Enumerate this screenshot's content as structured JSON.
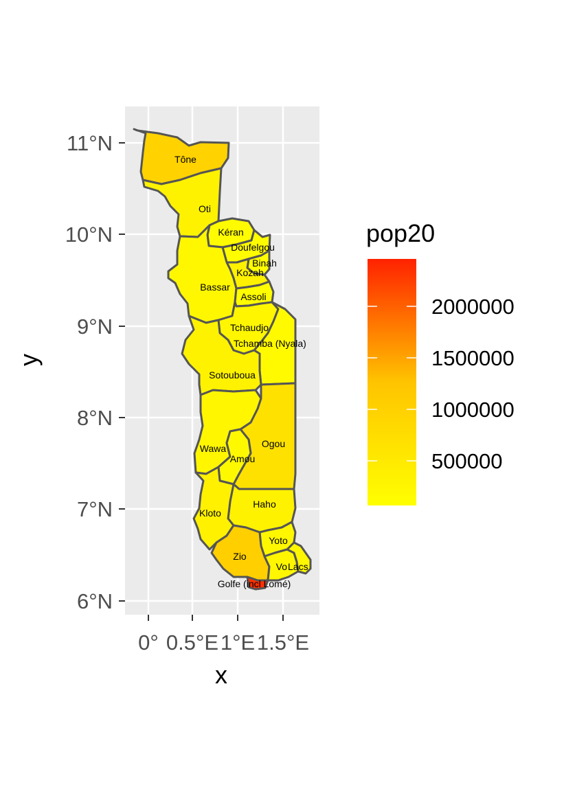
{
  "chart_data": {
    "type": "choropleth",
    "xlabel": "x",
    "ylabel": "y",
    "x_ticks": [
      "0°",
      "0.5°E",
      "1°E",
      "1.5°E"
    ],
    "y_ticks": [
      "6°N",
      "7°N",
      "8°N",
      "9°N",
      "10°N",
      "11°N"
    ],
    "legend": {
      "title": "pop20",
      "breaks": [
        "2000000",
        "1500000",
        "1000000",
        "500000"
      ],
      "low_color": "#FFFF00",
      "high_color": "#FF2200"
    },
    "regions": [
      {
        "name": "Tône",
        "pop20": 950000
      },
      {
        "name": "Oti",
        "pop20": 300000
      },
      {
        "name": "Kéran",
        "pop20": 130000
      },
      {
        "name": "Doufelgou",
        "pop20": 110000
      },
      {
        "name": "Binah",
        "pop20": 80000
      },
      {
        "name": "Kozah",
        "pop20": 320000
      },
      {
        "name": "Bassar",
        "pop20": 210000
      },
      {
        "name": "Assoli",
        "pop20": 90000
      },
      {
        "name": "Tchaudjo",
        "pop20": 230000
      },
      {
        "name": "Tchamba (Nyala)",
        "pop20": 150000
      },
      {
        "name": "Sotouboua",
        "pop20": 300000
      },
      {
        "name": "Ogou",
        "pop20": 650000
      },
      {
        "name": "Wawa",
        "pop20": 220000
      },
      {
        "name": "Amou",
        "pop20": 160000
      },
      {
        "name": "Haho",
        "pop20": 310000
      },
      {
        "name": "Kloto",
        "pop20": 330000
      },
      {
        "name": "Yoto",
        "pop20": 200000
      },
      {
        "name": "Zio",
        "pop20": 1000000
      },
      {
        "name": "Vo",
        "pop20": 230000
      },
      {
        "name": "Lacs",
        "pop20": 210000
      },
      {
        "name": "Golfe (incl Lomé)",
        "pop20": 2300000
      }
    ]
  }
}
